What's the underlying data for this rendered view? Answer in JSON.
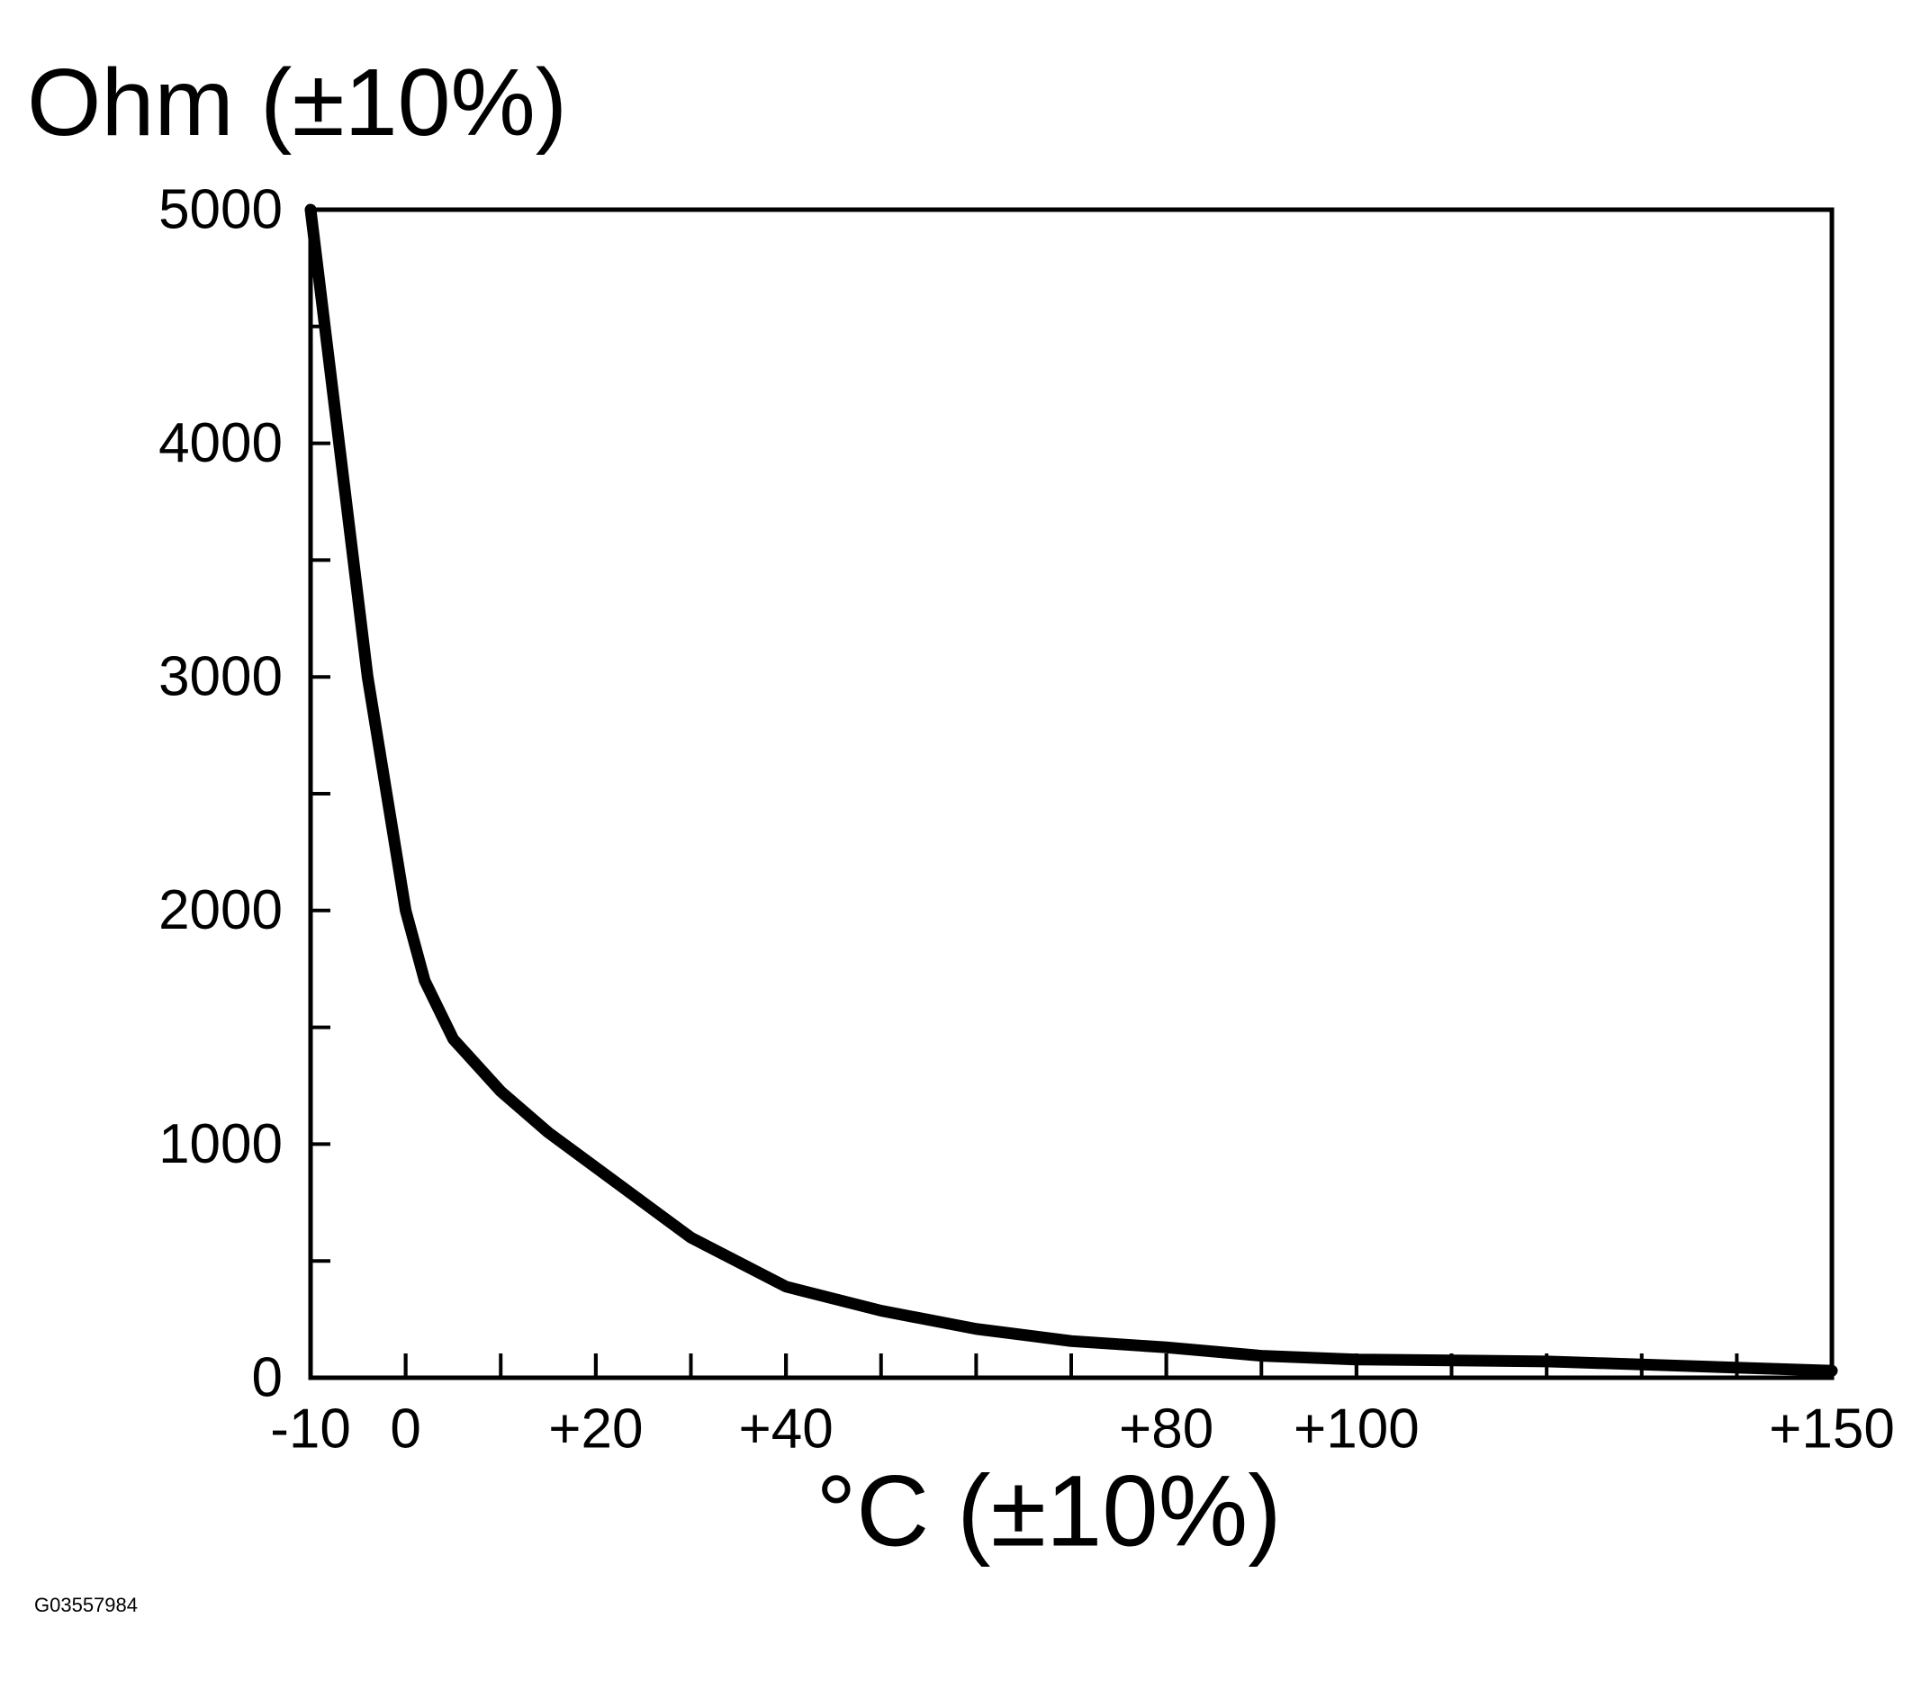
{
  "chart_data": {
    "type": "line",
    "y_label": "Ohm (±10%)",
    "x_label": "°C (±10%)",
    "footnote": "G03557984",
    "x": [
      -10,
      -7,
      -4,
      -2,
      0,
      2,
      5,
      10,
      15,
      20,
      30,
      40,
      50,
      60,
      70,
      80,
      90,
      100,
      120,
      150
    ],
    "series": [
      {
        "color": "#000000",
        "values": [
          5000,
          4000,
          3000,
          2500,
          2000,
          1700,
          1450,
          1226,
          1050,
          900,
          600,
          390,
          287,
          209,
          157,
          130,
          94,
          78,
          70,
          30
        ]
      }
    ],
    "xlim": [
      -10,
      150
    ],
    "ylim": [
      0,
      5000
    ],
    "xticks": [
      -10,
      0,
      {
        "value": 20,
        "label": "+20"
      },
      {
        "value": 40,
        "label": "+40"
      },
      {
        "value": 80,
        "label": "+80"
      },
      {
        "value": 100,
        "label": "+100"
      },
      {
        "value": 150,
        "label": "+150"
      }
    ],
    "x_minor_ticks": [
      0,
      10,
      20,
      30,
      40,
      50,
      60,
      70,
      80,
      90,
      100,
      110,
      120,
      130,
      140
    ],
    "yticks": [
      0,
      1000,
      2000,
      3000,
      4000,
      5000
    ],
    "y_minor_ticks": [
      500,
      1500,
      2500,
      3500,
      4500
    ],
    "grid": false
  }
}
